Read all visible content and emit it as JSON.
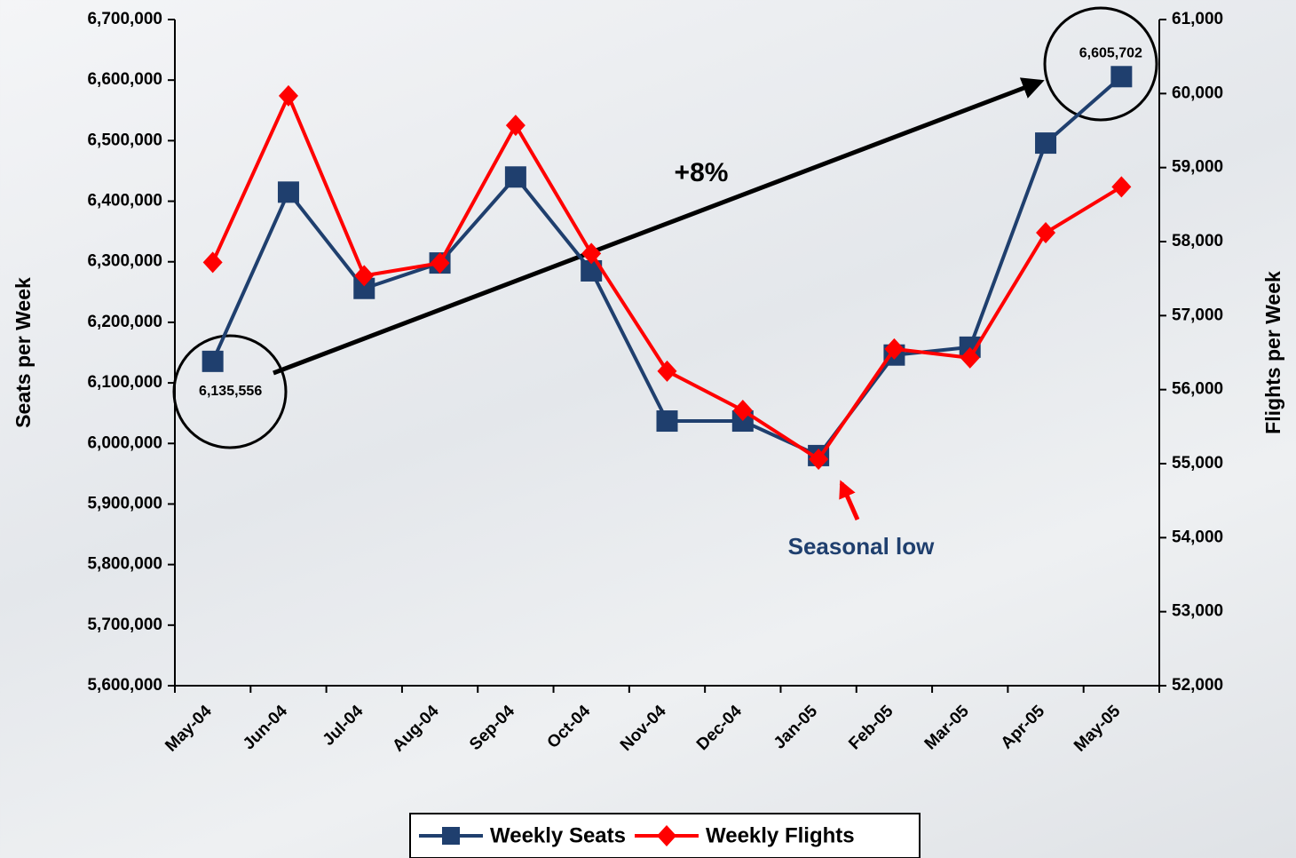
{
  "chart_data": {
    "type": "line",
    "categories": [
      "May-04",
      "Jun-04",
      "Jul-04",
      "Aug-04",
      "Sep-04",
      "Oct-04",
      "Nov-04",
      "Dec-04",
      "Jan-05",
      "Feb-05",
      "Mar-05",
      "Apr-05",
      "May-05"
    ],
    "series": [
      {
        "name": "Weekly Seats",
        "color": "#1f3f6e",
        "marker": "square",
        "values": [
          6135556,
          6415000,
          6256000,
          6298000,
          6440000,
          6285000,
          6037000,
          6037000,
          5980000,
          6146000,
          6159000,
          6496000,
          6605702
        ],
        "value_labels": [
          "6,135,556",
          null,
          null,
          null,
          null,
          null,
          null,
          null,
          null,
          null,
          null,
          null,
          "6,605,702"
        ]
      },
      {
        "name": "Weekly Flights",
        "color": "#ff0000",
        "marker": "diamond",
        "axis": "y2",
        "values": [
          57720,
          59970,
          57540,
          57710,
          59570,
          57840,
          56250,
          55720,
          55060,
          56550,
          56430,
          58120,
          58740
        ]
      }
    ],
    "y_label": "Seats per Week",
    "y2_label": "Flights per Week",
    "ylim": [
      5600000,
      6700000
    ],
    "yticks": [
      {
        "value": 5600000,
        "label": "5,600,000"
      },
      {
        "value": 5700000,
        "label": "5,700,000"
      },
      {
        "value": 5800000,
        "label": "5,800,000"
      },
      {
        "value": 5900000,
        "label": "5,900,000"
      },
      {
        "value": 6000000,
        "label": "6,000,000"
      },
      {
        "value": 6100000,
        "label": "6,100,000"
      },
      {
        "value": 6200000,
        "label": "6,200,000"
      },
      {
        "value": 6300000,
        "label": "6,300,000"
      },
      {
        "value": 6400000,
        "label": "6,400,000"
      },
      {
        "value": 6500000,
        "label": "6,500,000"
      },
      {
        "value": 6600000,
        "label": "6,600,000"
      },
      {
        "value": 6700000,
        "label": "6,700,000"
      }
    ],
    "y2lim": [
      52000,
      61000
    ],
    "y2ticks": [
      {
        "value": 52000,
        "label": "52,000"
      },
      {
        "value": 53000,
        "label": "53,000"
      },
      {
        "value": 54000,
        "label": "54,000"
      },
      {
        "value": 55000,
        "label": "55,000"
      },
      {
        "value": 56000,
        "label": "56,000"
      },
      {
        "value": 57000,
        "label": "57,000"
      },
      {
        "value": 58000,
        "label": "58,000"
      },
      {
        "value": 59000,
        "label": "59,000"
      },
      {
        "value": 60000,
        "label": "60,000"
      },
      {
        "value": 61000,
        "label": "61,000"
      }
    ],
    "annotations": [
      "+8%",
      "Seasonal low"
    ],
    "legend": "bottom"
  }
}
